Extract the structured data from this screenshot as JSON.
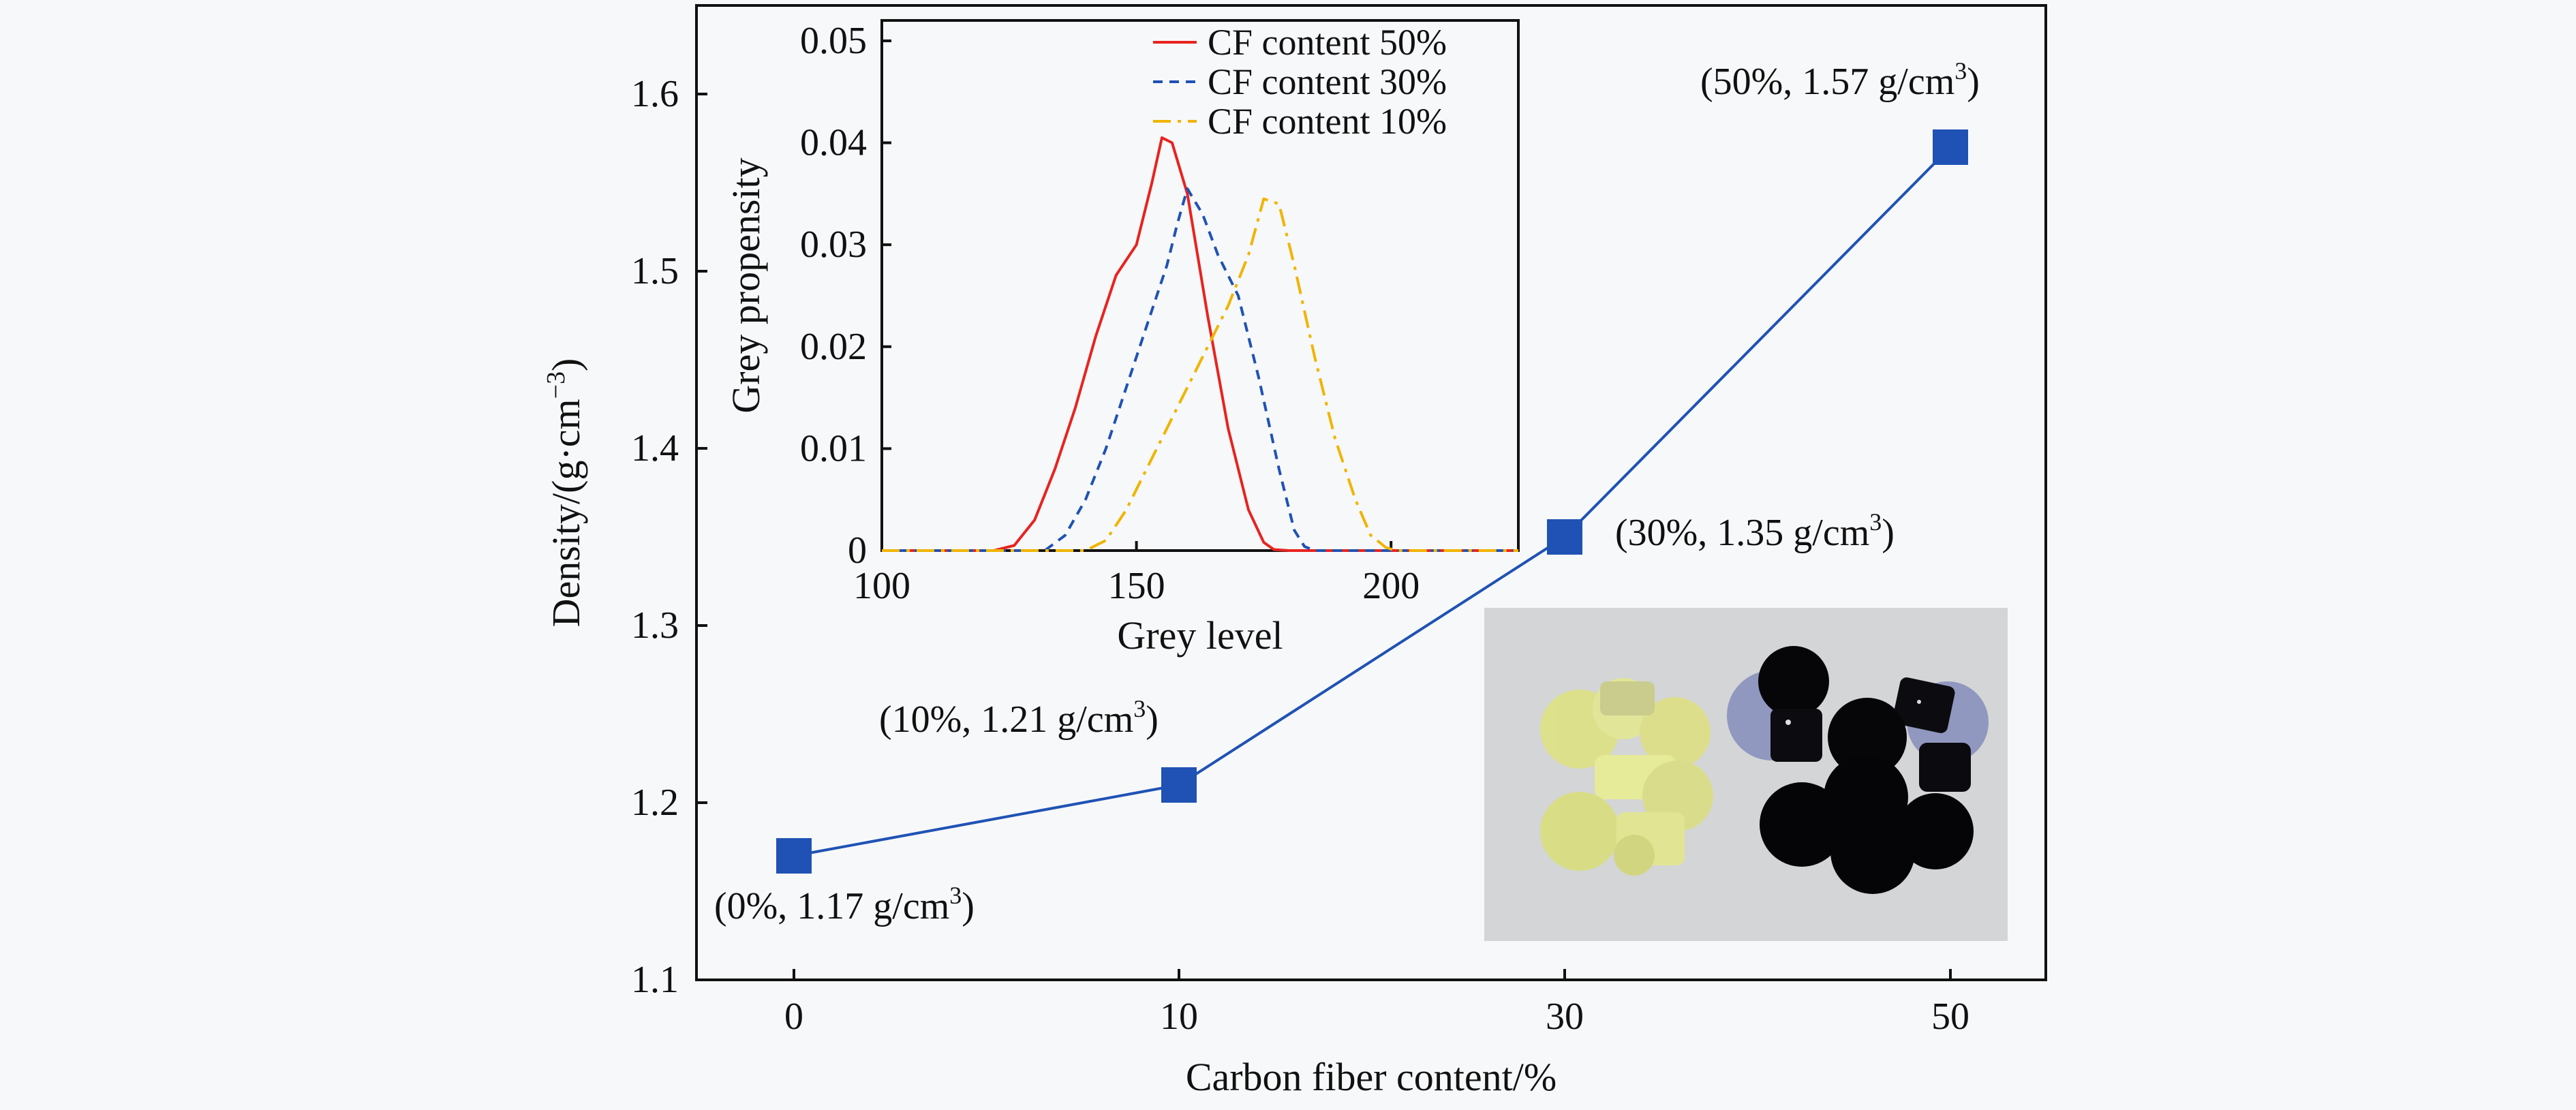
{
  "chart_data": [
    {
      "type": "line",
      "title": "",
      "xlabel": "Carbon fiber content/%",
      "ylabel_main": "Density/(g·cm",
      "ylabel_sup": "−3",
      "ylabel_close": ")",
      "categories": [
        "0",
        "10",
        "30",
        "50"
      ],
      "values": [
        1.17,
        1.21,
        1.35,
        1.57
      ],
      "ylim": [
        1.1,
        1.65
      ],
      "yticks": [
        "1.1",
        "1.2",
        "1.3",
        "1.4",
        "1.5",
        "1.6"
      ],
      "marker": "square",
      "color": "#1f52b4",
      "annotations": [
        {
          "text": "(0%, 1.17 g/cm",
          "sup": "3",
          "close": ")"
        },
        {
          "text": "(10%, 1.21 g/cm",
          "sup": "3",
          "close": ")"
        },
        {
          "text": "(30%, 1.35 g/cm",
          "sup": "3",
          "close": ")"
        },
        {
          "text": "(50%, 1.57 g/cm",
          "sup": "3",
          "close": ")"
        }
      ],
      "grid": false
    },
    {
      "type": "line",
      "title": "",
      "xlabel": "Grey level",
      "ylabel": "Grey propensity",
      "xlim": [
        100,
        225
      ],
      "ylim": [
        0,
        0.052
      ],
      "xticks": [
        "100",
        "150",
        "200"
      ],
      "yticks": [
        "0",
        "0.01",
        "0.02",
        "0.03",
        "0.04",
        "0.05"
      ],
      "legend_position": "top-right",
      "grid": false,
      "series": [
        {
          "name": "CF content 50%",
          "color": "#e8231f",
          "style": "solid",
          "x": [
            100,
            122,
            126,
            130,
            134,
            138,
            142,
            146,
            150,
            153,
            155,
            157,
            160,
            164,
            168,
            172,
            175,
            177,
            180,
            225
          ],
          "y": [
            0,
            0,
            0.0005,
            0.003,
            0.008,
            0.014,
            0.021,
            0.027,
            0.03,
            0.036,
            0.0405,
            0.04,
            0.035,
            0.023,
            0.012,
            0.004,
            0.0008,
            0.0001,
            0,
            0
          ]
        },
        {
          "name": "CF content 30%",
          "color": "#1f52b4",
          "style": "dashed",
          "x": [
            100,
            132,
            136,
            140,
            144,
            148,
            152,
            156,
            158,
            160,
            163,
            166,
            170,
            174,
            178,
            181,
            183,
            185,
            225
          ],
          "y": [
            0,
            0,
            0.0015,
            0.005,
            0.01,
            0.016,
            0.022,
            0.028,
            0.032,
            0.0355,
            0.033,
            0.029,
            0.025,
            0.017,
            0.008,
            0.002,
            0.0004,
            0,
            0
          ]
        },
        {
          "name": "CF content 10%",
          "color": "#f0b400",
          "style": "dashdot",
          "x": [
            100,
            140,
            144,
            148,
            152,
            156,
            160,
            164,
            168,
            172,
            175,
            178,
            181,
            185,
            189,
            193,
            196,
            199,
            201,
            225
          ],
          "y": [
            0,
            0,
            0.001,
            0.004,
            0.008,
            0.012,
            0.016,
            0.02,
            0.024,
            0.029,
            0.0345,
            0.034,
            0.028,
            0.019,
            0.011,
            0.005,
            0.0015,
            0.0003,
            0,
            0
          ]
        }
      ]
    }
  ]
}
